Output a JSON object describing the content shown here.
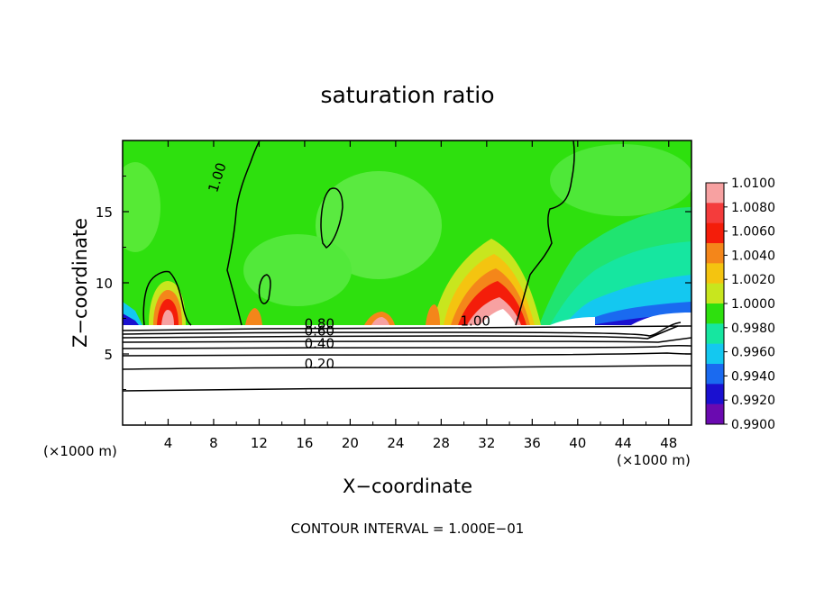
{
  "chart_data": {
    "type": "heatmap",
    "title": "saturation ratio",
    "xlabel": "X−coordinate",
    "ylabel": "Z−coordinate",
    "x_unit_left": "(×1000 m)",
    "x_unit_right": "(×1000 m)",
    "footer": "CONTOUR INTERVAL = 1.000E−01",
    "xlim": [
      0,
      50
    ],
    "ylim": [
      0,
      20
    ],
    "x_ticks": [
      4,
      8,
      12,
      16,
      20,
      24,
      28,
      32,
      36,
      40,
      44,
      48
    ],
    "x_tick_labels": [
      "4",
      "8",
      "12",
      "16",
      "20",
      "24",
      "28",
      "32",
      "36",
      "40",
      "44",
      "48"
    ],
    "y_ticks": [
      5,
      10,
      15
    ],
    "y_tick_labels": [
      "5",
      "10",
      "15"
    ],
    "colorbar": {
      "levels": [
        "1.0100",
        "1.0080",
        "1.0060",
        "1.0040",
        "1.0020",
        "1.0000",
        "0.9980",
        "0.9960",
        "0.9940",
        "0.9920",
        "0.9900"
      ],
      "colors": [
        "#f7a1a1",
        "#f43c3c",
        "#f41d0a",
        "#f4861a",
        "#f4c410",
        "#c8e61e",
        "#2ee00e",
        "#16e6a0",
        "#14c8f0",
        "#1a6af0",
        "#1a10d0",
        "#6a0ab0"
      ]
    },
    "contour_labels": [
      {
        "text": "1.00",
        "x": 8.7,
        "y": 17.3,
        "rotate": -72
      },
      {
        "text": "1.00",
        "x": 31.0,
        "y": 7.0,
        "rotate": 0
      },
      {
        "text": "0.80",
        "x": 17.3,
        "y": 6.8,
        "rotate": 0
      },
      {
        "text": "0.60",
        "x": 17.3,
        "y": 6.3,
        "rotate": 0
      },
      {
        "text": "0.40",
        "x": 17.3,
        "y": 5.4,
        "rotate": 0
      },
      {
        "text": "0.20",
        "x": 17.3,
        "y": 4.0,
        "rotate": 0
      }
    ]
  }
}
